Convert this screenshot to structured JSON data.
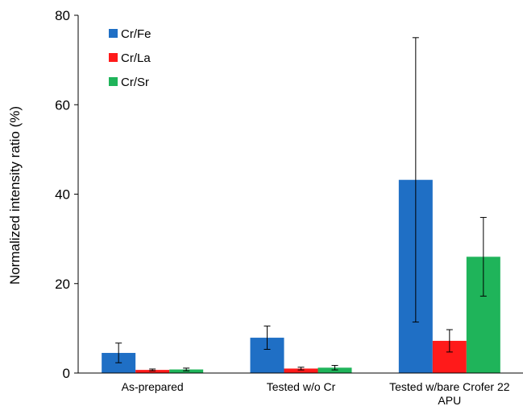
{
  "chart_data": {
    "type": "bar",
    "title": "",
    "xlabel": "",
    "ylabel": "Normalized intensity ratio (%)",
    "ylim": [
      0,
      80
    ],
    "yticks": [
      0,
      20,
      40,
      60,
      80
    ],
    "grid": false,
    "legend_position": "top-left",
    "categories": [
      "As-prepared",
      "Tested w/o Cr",
      "Tested w/bare Crofer 22 APU"
    ],
    "series": [
      {
        "name": "Cr/Fe",
        "color": "#1f6fc5",
        "values": [
          4.5,
          7.9,
          43.2
        ],
        "errors": [
          2.2,
          2.6,
          31.8
        ]
      },
      {
        "name": "Cr/La",
        "color": "#ff1a1a",
        "values": [
          0.7,
          1.0,
          7.2
        ],
        "errors": [
          0.2,
          0.3,
          2.5
        ]
      },
      {
        "name": "Cr/Sr",
        "color": "#1fb45a",
        "values": [
          0.8,
          1.2,
          26.0
        ],
        "errors": [
          0.3,
          0.5,
          8.8
        ]
      }
    ]
  }
}
